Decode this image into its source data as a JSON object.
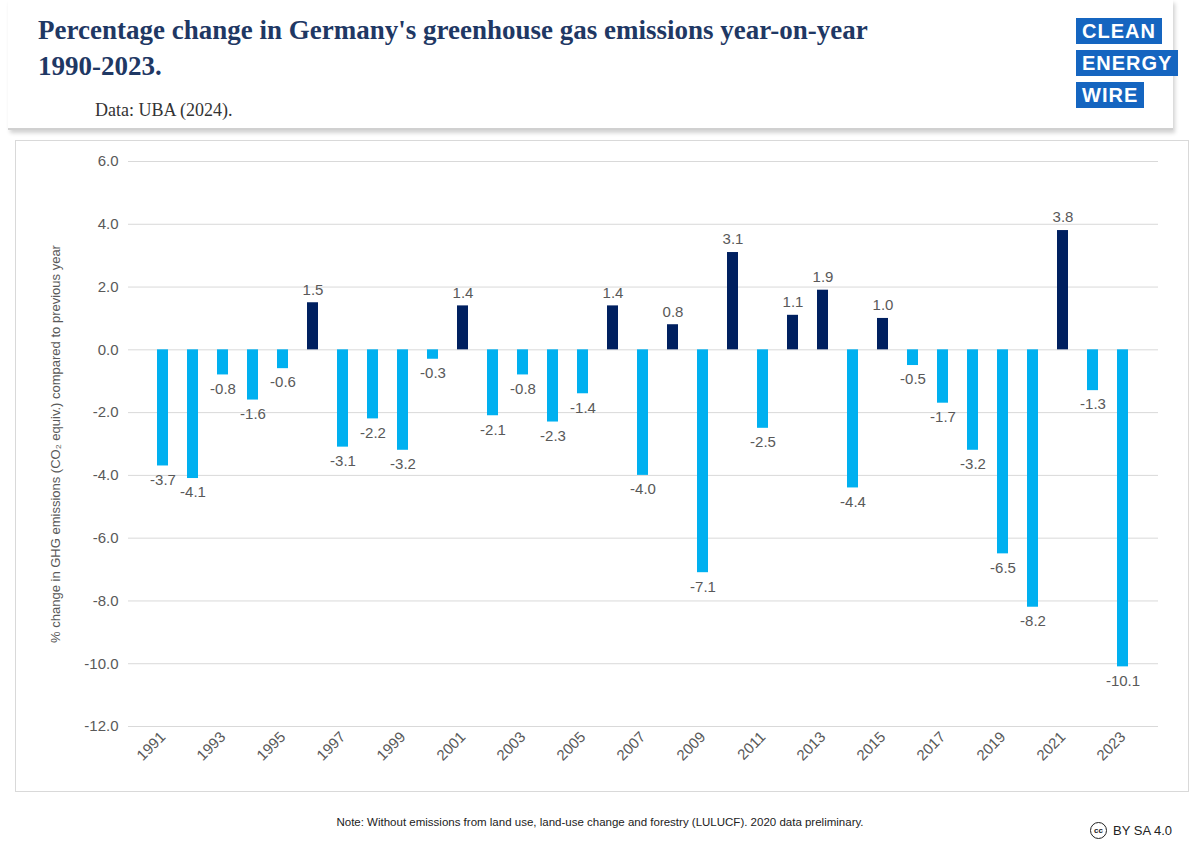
{
  "chart_data": {
    "type": "bar",
    "title": "Percentage change in Germany's greenhouse gas emissions year-on-year\n1990-2023.",
    "subtitle": "Data: UBA (2024).",
    "ylabel": "% change in GHG emissions (CO₂ equiv.) compared to previous year",
    "note": "Note: Without emissions from land use, land-use change and forestry (LULUCF). 2020 data preliminary.",
    "logo": [
      "CLEAN",
      "ENERGY",
      "WIRE"
    ],
    "license": [
      "cc",
      "BY SA 4.0"
    ],
    "categories": [
      "1991",
      null,
      "1993",
      null,
      "1995",
      null,
      "1997",
      null,
      "1999",
      null,
      "2001",
      null,
      "2003",
      null,
      "2005",
      null,
      "2007",
      null,
      "2009",
      null,
      "2011",
      null,
      "2013",
      null,
      "2015",
      null,
      "2017",
      null,
      "2019",
      null,
      "2021",
      null,
      "2023"
    ],
    "values": [
      -3.7,
      -4.1,
      -0.8,
      -1.6,
      -0.6,
      1.5,
      -3.1,
      -2.2,
      -3.2,
      -0.3,
      1.4,
      -2.1,
      -0.8,
      -2.3,
      -1.4,
      1.4,
      -4.0,
      0.8,
      -7.1,
      3.1,
      -2.5,
      1.1,
      1.9,
      -4.4,
      1.0,
      -0.5,
      -1.7,
      -3.2,
      -6.5,
      -8.2,
      3.8,
      -1.3,
      -10.1
    ],
    "value_labels": [
      "-3.7",
      "-4.1",
      "-0.8",
      "-1.6",
      "-0.6",
      "1.5",
      "-3.1",
      "-2.2",
      "-3.2",
      "-0.3",
      "1.4",
      "-2.1",
      "-0.8",
      "-2.3",
      "-1.4",
      "1.4",
      "-4.0",
      "0.8",
      "-7.1",
      "3.1",
      "-2.5",
      "1.1",
      "1.9",
      "-4.4",
      "1.0",
      "-0.5",
      "-1.7",
      "-3.2",
      "-6.5",
      "-8.2",
      "3.8",
      "-1.3",
      "-10.1"
    ],
    "colors": [
      "#00b0f0",
      "#00b0f0",
      "#00b0f0",
      "#00b0f0",
      "#00b0f0",
      "#002060",
      "#00b0f0",
      "#00b0f0",
      "#00b0f0",
      "#00b0f0",
      "#002060",
      "#00b0f0",
      "#00b0f0",
      "#00b0f0",
      "#00b0f0",
      "#002060",
      "#00b0f0",
      "#002060",
      "#00b0f0",
      "#002060",
      "#00b0f0",
      "#002060",
      "#002060",
      "#00b0f0",
      "#002060",
      "#00b0f0",
      "#00b0f0",
      "#00b0f0",
      "#00b0f0",
      "#00b0f0",
      "#002060",
      "#00b0f0",
      "#00b0f0"
    ],
    "ylim": [
      -12,
      6
    ],
    "yticks": [
      {
        "value": -12,
        "label": "-12.0"
      },
      {
        "value": -10,
        "label": "-10.0"
      },
      {
        "value": -8,
        "label": "-8.0"
      },
      {
        "value": -6,
        "label": "-6.0"
      },
      {
        "value": -4,
        "label": "-4.0"
      },
      {
        "value": -2,
        "label": "-2.0"
      },
      {
        "value": 0,
        "label": "0.0"
      },
      {
        "value": 2,
        "label": "2.0"
      },
      {
        "value": 4,
        "label": "4.0"
      },
      {
        "value": 6,
        "label": "6.0"
      }
    ],
    "grid": true,
    "data_labels": true
  }
}
